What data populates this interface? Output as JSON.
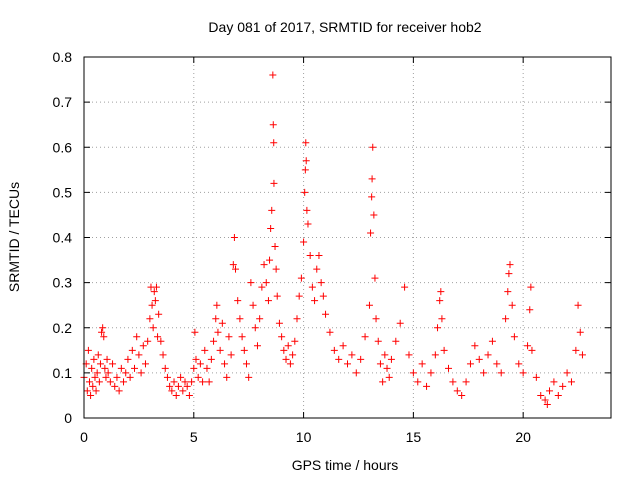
{
  "chart_data": {
    "type": "scatter",
    "title": "Day 081 of 2017, SRMTID for receiver hob2",
    "xlabel": "GPS time / hours",
    "ylabel": "SRMTID / TECUs",
    "xlim": [
      0,
      24
    ],
    "ylim": [
      0,
      0.8
    ],
    "xticks": [
      0,
      5,
      10,
      15,
      20
    ],
    "yticks": [
      0,
      0.1,
      0.2,
      0.3,
      0.4,
      0.5,
      0.6,
      0.7,
      0.8
    ],
    "xtick_labels": [
      "0",
      "5",
      "10",
      "15",
      "20"
    ],
    "ytick_labels": [
      "0",
      "0.1",
      "0.2",
      "0.3",
      "0.4",
      "0.5",
      "0.6",
      "0.7",
      "0.8"
    ],
    "grid": true,
    "marker": "plus",
    "color": "#ff0000",
    "series": [
      {
        "name": "SRMTID",
        "points": [
          [
            0.0,
            0.09
          ],
          [
            0.1,
            0.12
          ],
          [
            0.15,
            0.06
          ],
          [
            0.2,
            0.15
          ],
          [
            0.25,
            0.08
          ],
          [
            0.3,
            0.05
          ],
          [
            0.35,
            0.11
          ],
          [
            0.4,
            0.07
          ],
          [
            0.45,
            0.13
          ],
          [
            0.5,
            0.09
          ],
          [
            0.55,
            0.06
          ],
          [
            0.6,
            0.1
          ],
          [
            0.65,
            0.14
          ],
          [
            0.7,
            0.08
          ],
          [
            0.75,
            0.12
          ],
          [
            0.8,
            0.19
          ],
          [
            0.85,
            0.2
          ],
          [
            0.9,
            0.18
          ],
          [
            0.95,
            0.11
          ],
          [
            1.0,
            0.09
          ],
          [
            1.05,
            0.13
          ],
          [
            1.1,
            0.1
          ],
          [
            1.2,
            0.08
          ],
          [
            1.3,
            0.12
          ],
          [
            1.4,
            0.07
          ],
          [
            1.5,
            0.09
          ],
          [
            1.6,
            0.06
          ],
          [
            1.7,
            0.11
          ],
          [
            1.8,
            0.08
          ],
          [
            1.9,
            0.1
          ],
          [
            2.0,
            0.13
          ],
          [
            2.1,
            0.09
          ],
          [
            2.2,
            0.15
          ],
          [
            2.3,
            0.11
          ],
          [
            2.4,
            0.18
          ],
          [
            2.5,
            0.14
          ],
          [
            2.6,
            0.1
          ],
          [
            2.7,
            0.16
          ],
          [
            2.8,
            0.12
          ],
          [
            2.9,
            0.17
          ],
          [
            3.0,
            0.22
          ],
          [
            3.05,
            0.29
          ],
          [
            3.1,
            0.25
          ],
          [
            3.15,
            0.2
          ],
          [
            3.2,
            0.28
          ],
          [
            3.25,
            0.26
          ],
          [
            3.3,
            0.29
          ],
          [
            3.35,
            0.18
          ],
          [
            3.4,
            0.23
          ],
          [
            3.5,
            0.17
          ],
          [
            3.6,
            0.14
          ],
          [
            3.7,
            0.11
          ],
          [
            3.8,
            0.09
          ],
          [
            3.9,
            0.07
          ],
          [
            4.0,
            0.06
          ],
          [
            4.1,
            0.08
          ],
          [
            4.2,
            0.05
          ],
          [
            4.3,
            0.07
          ],
          [
            4.4,
            0.09
          ],
          [
            4.5,
            0.06
          ],
          [
            4.6,
            0.08
          ],
          [
            4.7,
            0.07
          ],
          [
            4.8,
            0.05
          ],
          [
            4.9,
            0.08
          ],
          [
            5.0,
            0.11
          ],
          [
            5.05,
            0.19
          ],
          [
            5.1,
            0.13
          ],
          [
            5.2,
            0.09
          ],
          [
            5.3,
            0.12
          ],
          [
            5.4,
            0.08
          ],
          [
            5.5,
            0.15
          ],
          [
            5.6,
            0.11
          ],
          [
            5.7,
            0.08
          ],
          [
            5.8,
            0.13
          ],
          [
            5.9,
            0.17
          ],
          [
            6.0,
            0.22
          ],
          [
            6.05,
            0.25
          ],
          [
            6.1,
            0.19
          ],
          [
            6.2,
            0.15
          ],
          [
            6.3,
            0.21
          ],
          [
            6.4,
            0.12
          ],
          [
            6.5,
            0.09
          ],
          [
            6.6,
            0.18
          ],
          [
            6.7,
            0.14
          ],
          [
            6.8,
            0.34
          ],
          [
            6.85,
            0.4
          ],
          [
            6.9,
            0.33
          ],
          [
            7.0,
            0.26
          ],
          [
            7.1,
            0.22
          ],
          [
            7.2,
            0.18
          ],
          [
            7.3,
            0.15
          ],
          [
            7.4,
            0.12
          ],
          [
            7.5,
            0.09
          ],
          [
            7.6,
            0.3
          ],
          [
            7.7,
            0.25
          ],
          [
            7.8,
            0.2
          ],
          [
            7.9,
            0.16
          ],
          [
            8.0,
            0.22
          ],
          [
            8.1,
            0.29
          ],
          [
            8.2,
            0.34
          ],
          [
            8.3,
            0.3
          ],
          [
            8.4,
            0.26
          ],
          [
            8.45,
            0.35
          ],
          [
            8.5,
            0.42
          ],
          [
            8.55,
            0.46
          ],
          [
            8.6,
            0.76
          ],
          [
            8.62,
            0.65
          ],
          [
            8.64,
            0.61
          ],
          [
            8.65,
            0.52
          ],
          [
            8.7,
            0.38
          ],
          [
            8.75,
            0.33
          ],
          [
            8.8,
            0.27
          ],
          [
            8.9,
            0.21
          ],
          [
            9.0,
            0.18
          ],
          [
            9.1,
            0.15
          ],
          [
            9.2,
            0.13
          ],
          [
            9.3,
            0.16
          ],
          [
            9.4,
            0.12
          ],
          [
            9.5,
            0.14
          ],
          [
            9.6,
            0.17
          ],
          [
            9.7,
            0.22
          ],
          [
            9.8,
            0.27
          ],
          [
            9.9,
            0.31
          ],
          [
            10.0,
            0.39
          ],
          [
            10.05,
            0.5
          ],
          [
            10.08,
            0.55
          ],
          [
            10.1,
            0.61
          ],
          [
            10.12,
            0.57
          ],
          [
            10.15,
            0.46
          ],
          [
            10.2,
            0.43
          ],
          [
            10.3,
            0.36
          ],
          [
            10.4,
            0.29
          ],
          [
            10.5,
            0.26
          ],
          [
            10.6,
            0.33
          ],
          [
            10.7,
            0.36
          ],
          [
            10.8,
            0.3
          ],
          [
            10.9,
            0.27
          ],
          [
            11.0,
            0.23
          ],
          [
            11.2,
            0.19
          ],
          [
            11.4,
            0.15
          ],
          [
            11.6,
            0.13
          ],
          [
            11.8,
            0.16
          ],
          [
            12.0,
            0.12
          ],
          [
            12.2,
            0.14
          ],
          [
            12.4,
            0.1
          ],
          [
            12.6,
            0.13
          ],
          [
            12.8,
            0.18
          ],
          [
            13.0,
            0.25
          ],
          [
            13.05,
            0.41
          ],
          [
            13.1,
            0.49
          ],
          [
            13.12,
            0.53
          ],
          [
            13.15,
            0.6
          ],
          [
            13.2,
            0.45
          ],
          [
            13.25,
            0.31
          ],
          [
            13.3,
            0.22
          ],
          [
            13.4,
            0.17
          ],
          [
            13.5,
            0.12
          ],
          [
            13.6,
            0.08
          ],
          [
            13.7,
            0.14
          ],
          [
            13.8,
            0.11
          ],
          [
            13.9,
            0.09
          ],
          [
            14.0,
            0.13
          ],
          [
            14.2,
            0.17
          ],
          [
            14.4,
            0.21
          ],
          [
            14.6,
            0.29
          ],
          [
            14.8,
            0.14
          ],
          [
            15.0,
            0.1
          ],
          [
            15.2,
            0.08
          ],
          [
            15.4,
            0.12
          ],
          [
            15.6,
            0.07
          ],
          [
            15.8,
            0.1
          ],
          [
            16.0,
            0.14
          ],
          [
            16.1,
            0.2
          ],
          [
            16.2,
            0.26
          ],
          [
            16.25,
            0.28
          ],
          [
            16.3,
            0.22
          ],
          [
            16.4,
            0.15
          ],
          [
            16.6,
            0.11
          ],
          [
            16.8,
            0.08
          ],
          [
            17.0,
            0.06
          ],
          [
            17.2,
            0.05
          ],
          [
            17.4,
            0.08
          ],
          [
            17.6,
            0.12
          ],
          [
            17.8,
            0.16
          ],
          [
            18.0,
            0.13
          ],
          [
            18.2,
            0.1
          ],
          [
            18.4,
            0.14
          ],
          [
            18.6,
            0.17
          ],
          [
            18.8,
            0.12
          ],
          [
            19.0,
            0.1
          ],
          [
            19.2,
            0.22
          ],
          [
            19.3,
            0.28
          ],
          [
            19.35,
            0.32
          ],
          [
            19.4,
            0.34
          ],
          [
            19.5,
            0.25
          ],
          [
            19.6,
            0.18
          ],
          [
            19.8,
            0.12
          ],
          [
            20.0,
            0.1
          ],
          [
            20.2,
            0.16
          ],
          [
            20.3,
            0.24
          ],
          [
            20.35,
            0.29
          ],
          [
            20.4,
            0.15
          ],
          [
            20.6,
            0.09
          ],
          [
            20.8,
            0.05
          ],
          [
            21.0,
            0.04
          ],
          [
            21.1,
            0.03
          ],
          [
            21.2,
            0.06
          ],
          [
            21.4,
            0.08
          ],
          [
            21.6,
            0.05
          ],
          [
            21.8,
            0.07
          ],
          [
            22.0,
            0.1
          ],
          [
            22.2,
            0.08
          ],
          [
            22.4,
            0.15
          ],
          [
            22.5,
            0.25
          ],
          [
            22.6,
            0.19
          ],
          [
            22.7,
            0.14
          ]
        ]
      }
    ]
  }
}
